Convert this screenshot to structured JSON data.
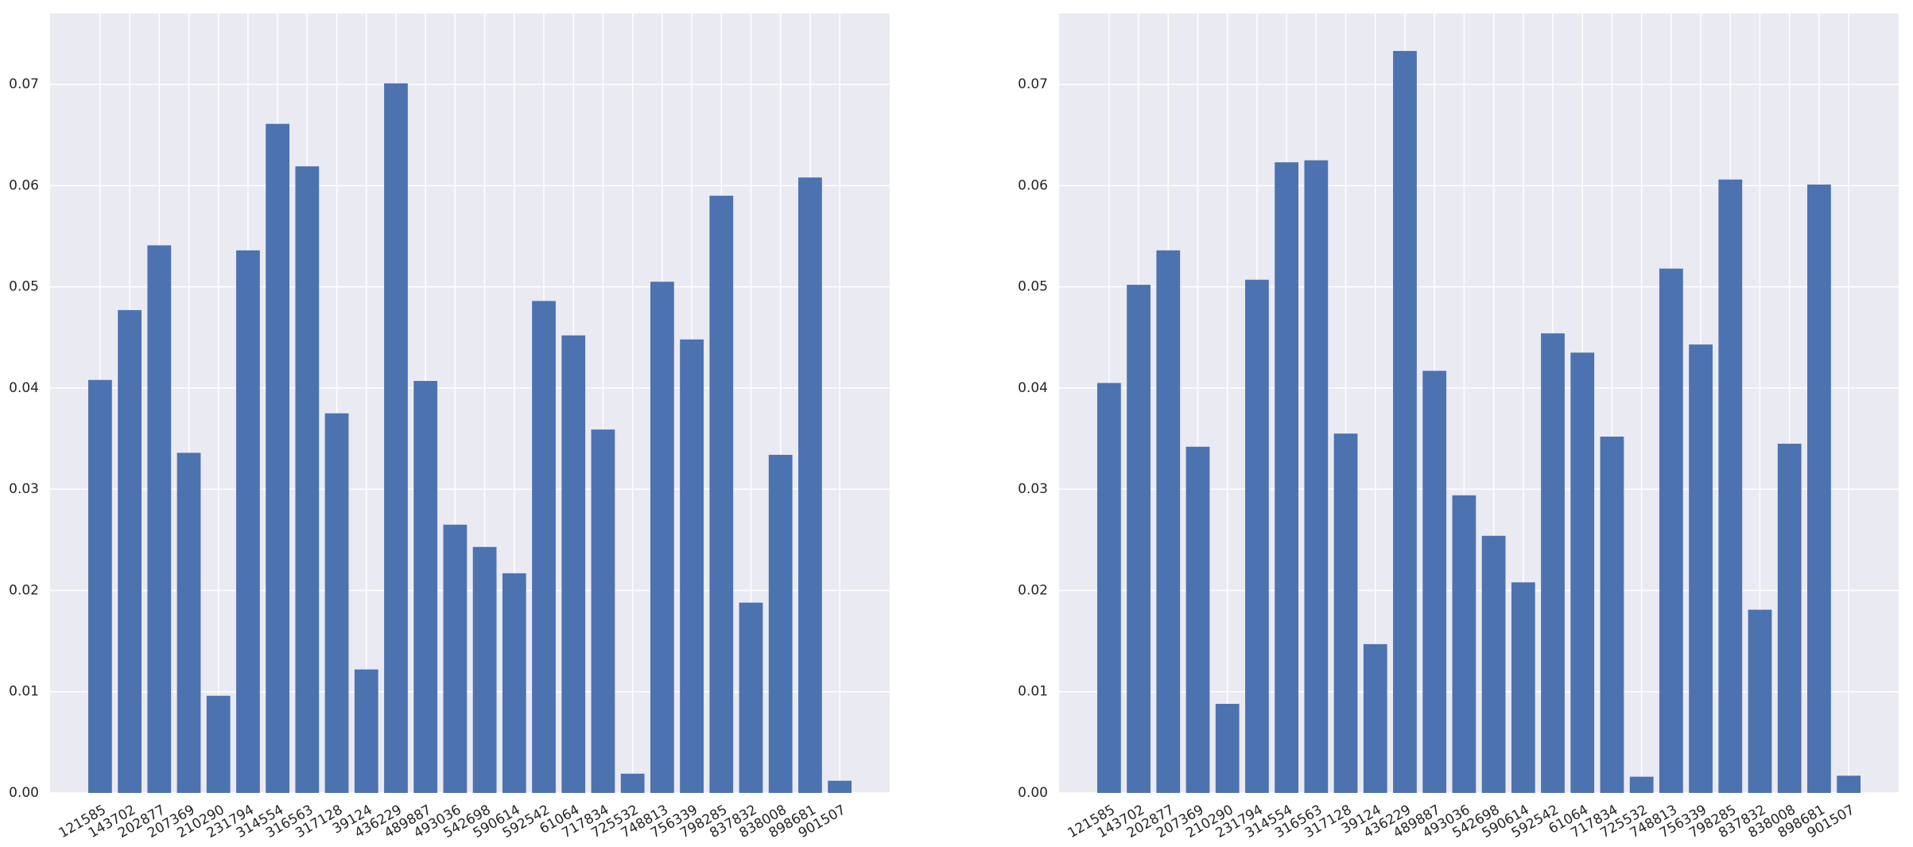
{
  "chart_data": [
    {
      "type": "bar",
      "color": "#4c72b0",
      "grid": true,
      "categories": [
        "121585",
        "143702",
        "202877",
        "207369",
        "210290",
        "231794",
        "314554",
        "316563",
        "317128",
        "39124",
        "436229",
        "489887",
        "493036",
        "542698",
        "590614",
        "592542",
        "61064",
        "717834",
        "725532",
        "748813",
        "756339",
        "798285",
        "837832",
        "838008",
        "898681",
        "901507"
      ],
      "values": [
        0.0408,
        0.0477,
        0.0541,
        0.0336,
        0.0096,
        0.0536,
        0.0661,
        0.0619,
        0.0375,
        0.0122,
        0.0701,
        0.0407,
        0.0265,
        0.0243,
        0.0217,
        0.0486,
        0.0452,
        0.0359,
        0.0019,
        0.0505,
        0.0448,
        0.059,
        0.0188,
        0.0334,
        0.0608,
        0.0012
      ],
      "ylim": [
        0,
        0.077
      ],
      "yticks": [
        {
          "value": 0,
          "label": "0.00"
        },
        {
          "value": 0.01,
          "label": "0.01"
        },
        {
          "value": 0.02,
          "label": "0.02"
        },
        {
          "value": 0.03,
          "label": "0.03"
        },
        {
          "value": 0.04,
          "label": "0.04"
        },
        {
          "value": 0.05,
          "label": "0.05"
        },
        {
          "value": 0.06,
          "label": "0.06"
        },
        {
          "value": 0.07,
          "label": "0.07"
        }
      ]
    },
    {
      "type": "bar",
      "color": "#4c72b0",
      "grid": true,
      "categories": [
        "121585",
        "143702",
        "202877",
        "207369",
        "210290",
        "231794",
        "314554",
        "316563",
        "317128",
        "39124",
        "436229",
        "489887",
        "493036",
        "542698",
        "590614",
        "592542",
        "61064",
        "717834",
        "725532",
        "748813",
        "756339",
        "798285",
        "837832",
        "838008",
        "898681",
        "901507"
      ],
      "values": [
        0.0405,
        0.0502,
        0.0536,
        0.0342,
        0.0088,
        0.0507,
        0.0623,
        0.0625,
        0.0355,
        0.0147,
        0.0733,
        0.0417,
        0.0294,
        0.0254,
        0.0208,
        0.0454,
        0.0435,
        0.0352,
        0.0016,
        0.0518,
        0.0443,
        0.0606,
        0.0181,
        0.0345,
        0.0601,
        0.0017
      ],
      "ylim": [
        0,
        0.077
      ],
      "yticks": [
        {
          "value": 0,
          "label": "0.00"
        },
        {
          "value": 0.01,
          "label": "0.01"
        },
        {
          "value": 0.02,
          "label": "0.02"
        },
        {
          "value": 0.03,
          "label": "0.03"
        },
        {
          "value": 0.04,
          "label": "0.04"
        },
        {
          "value": 0.05,
          "label": "0.05"
        },
        {
          "value": 0.06,
          "label": "0.06"
        },
        {
          "value": 0.07,
          "label": "0.07"
        }
      ]
    }
  ]
}
